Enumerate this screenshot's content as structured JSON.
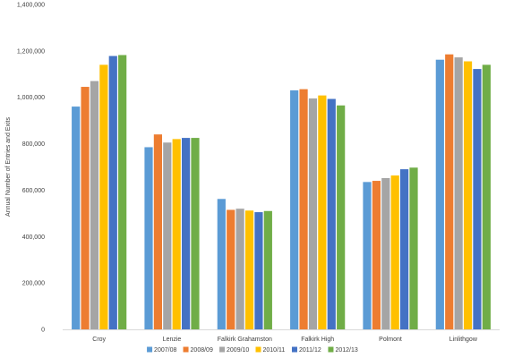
{
  "chart_data": {
    "type": "bar",
    "title": "",
    "xlabel": "",
    "ylabel": "Annual Number of Entries and Exits",
    "ylim": [
      0,
      1400000
    ],
    "yticks": [
      "0",
      "200,000",
      "400,000",
      "600,000",
      "800,000",
      "1,000,000",
      "1,200,000",
      "1,400,000"
    ],
    "categories": [
      "Croy",
      "Lenzie",
      "Falkirk Grahamston",
      "Falkirk High",
      "Polmont",
      "Linlithgow"
    ],
    "series": [
      {
        "name": "2007/08",
        "color": "#5B9BD5",
        "values": [
          960000,
          785000,
          562000,
          1030000,
          635000,
          1162000
        ]
      },
      {
        "name": "2008/09",
        "color": "#ED7D31",
        "values": [
          1045000,
          840000,
          515000,
          1035000,
          640000,
          1185000
        ]
      },
      {
        "name": "2009/10",
        "color": "#A5A5A5",
        "values": [
          1070000,
          805000,
          520000,
          995000,
          652000,
          1172000
        ]
      },
      {
        "name": "2010/11",
        "color": "#FFC000",
        "values": [
          1140000,
          820000,
          512000,
          1008000,
          663000,
          1155000
        ]
      },
      {
        "name": "2011/12",
        "color": "#4472C4",
        "values": [
          1178000,
          825000,
          505000,
          993000,
          690000,
          1122000
        ]
      },
      {
        "name": "2012/13",
        "color": "#70AD47",
        "values": [
          1182000,
          825000,
          510000,
          965000,
          697000,
          1140000
        ]
      }
    ],
    "grid": false,
    "legend_position": "bottom"
  }
}
